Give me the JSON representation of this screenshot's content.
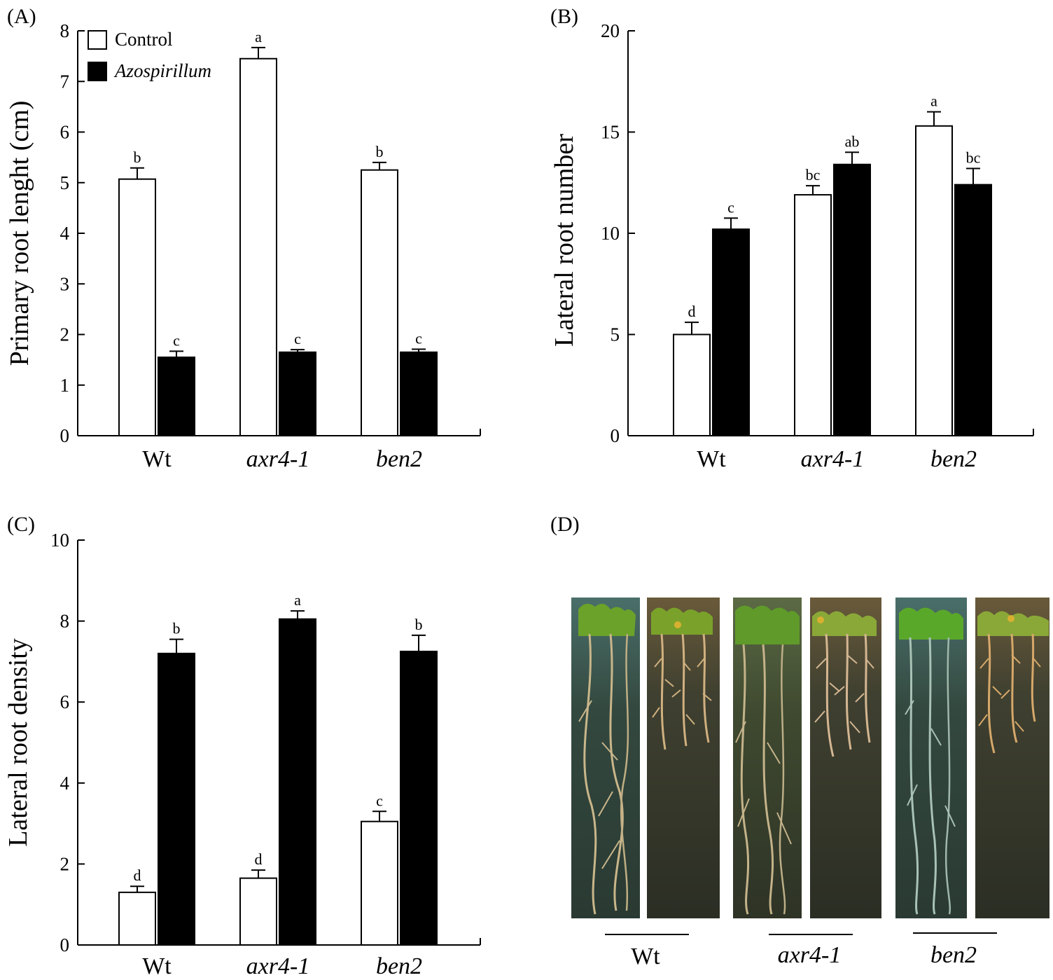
{
  "panels": {
    "A": "(A)",
    "B": "(B)",
    "C": "(C)",
    "D": "(D)"
  },
  "legend": {
    "control": "Control",
    "treated": "Azospirillum"
  },
  "colors": {
    "control_fill": "#ffffff",
    "treated_fill": "#000000",
    "stroke": "#000000"
  },
  "chart_data": [
    {
      "id": "A",
      "type": "bar",
      "title": "",
      "xlabel": "",
      "ylabel": "Primary root lenght (cm)",
      "ylim": [
        0,
        8
      ],
      "yticks": [
        0,
        1,
        2,
        3,
        4,
        5,
        6,
        7,
        8
      ],
      "categories": [
        "Wt",
        "axr4-1",
        "ben2"
      ],
      "italic_categories": [
        false,
        true,
        true
      ],
      "series": [
        {
          "name": "Control",
          "values": [
            5.07,
            7.45,
            5.25
          ],
          "errors": [
            0.22,
            0.22,
            0.15
          ],
          "labels": [
            "b",
            "a",
            "b"
          ]
        },
        {
          "name": "Azospirillum",
          "values": [
            1.55,
            1.65,
            1.65
          ],
          "errors": [
            0.12,
            0.05,
            0.06
          ],
          "labels": [
            "c",
            "c",
            "c"
          ]
        }
      ]
    },
    {
      "id": "B",
      "type": "bar",
      "title": "",
      "xlabel": "",
      "ylabel": "Lateral root number",
      "ylim": [
        0,
        20
      ],
      "yticks": [
        0,
        5,
        10,
        15,
        20
      ],
      "categories": [
        "Wt",
        "axr4-1",
        "ben2"
      ],
      "italic_categories": [
        false,
        true,
        true
      ],
      "series": [
        {
          "name": "Control",
          "values": [
            5.0,
            11.9,
            15.3
          ],
          "errors": [
            0.6,
            0.45,
            0.7
          ],
          "labels": [
            "d",
            "bc",
            "a"
          ]
        },
        {
          "name": "Azospirillum",
          "values": [
            10.2,
            13.4,
            12.4
          ],
          "errors": [
            0.55,
            0.6,
            0.8
          ],
          "labels": [
            "c",
            "ab",
            "bc"
          ]
        }
      ]
    },
    {
      "id": "C",
      "type": "bar",
      "title": "",
      "xlabel": "",
      "ylabel": "Lateral root density",
      "ylim": [
        0,
        10
      ],
      "yticks": [
        0,
        2,
        4,
        6,
        8,
        10
      ],
      "categories": [
        "Wt",
        "axr4-1",
        "ben2"
      ],
      "italic_categories": [
        false,
        true,
        true
      ],
      "series": [
        {
          "name": "Control",
          "values": [
            1.3,
            1.65,
            3.05
          ],
          "errors": [
            0.15,
            0.2,
            0.25
          ],
          "labels": [
            "d",
            "d",
            "c"
          ]
        },
        {
          "name": "Azospirillum",
          "values": [
            7.2,
            8.05,
            7.25
          ],
          "errors": [
            0.35,
            0.2,
            0.4
          ],
          "labels": [
            "b",
            "a",
            "b"
          ]
        }
      ]
    }
  ],
  "photo": {
    "groups": [
      "Wt",
      "axr4-1",
      "ben2"
    ],
    "italic_groups": [
      false,
      true,
      true
    ]
  }
}
